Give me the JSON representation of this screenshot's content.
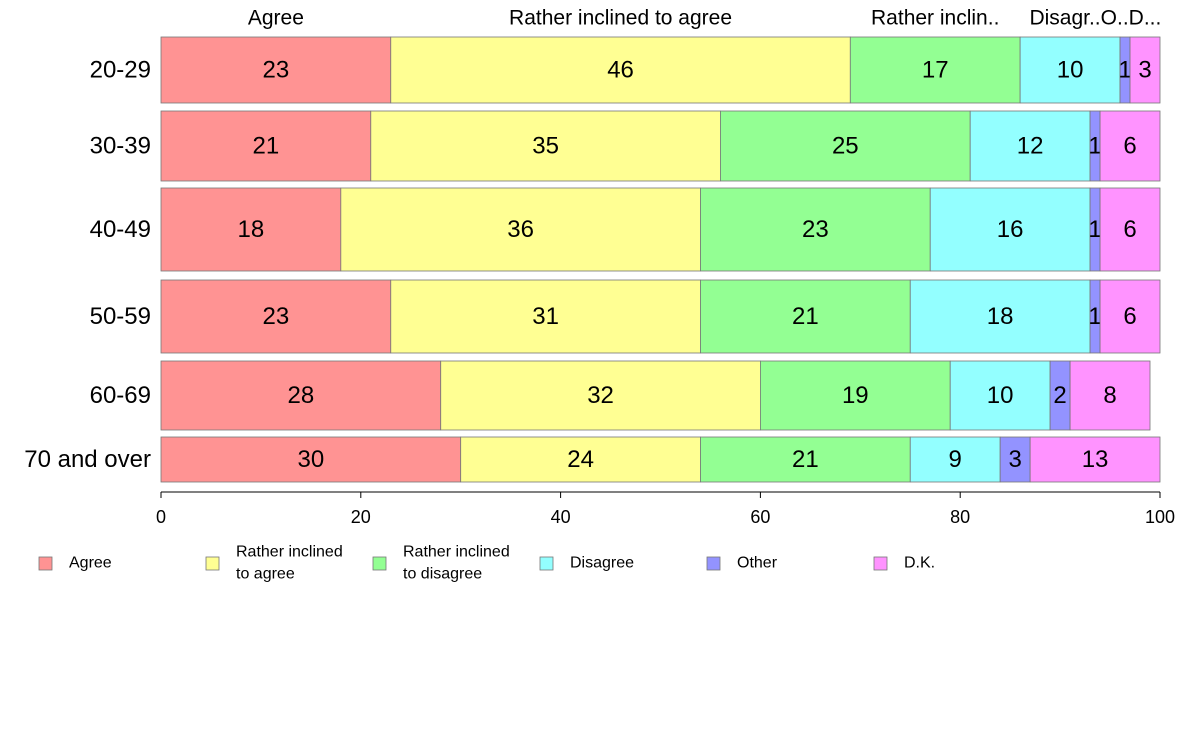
{
  "chart_data": {
    "type": "bar",
    "orientation": "horizontal",
    "stacked": true,
    "categories": [
      "20-29",
      "30-39",
      "40-49",
      "50-59",
      "60-69",
      "70 and over"
    ],
    "series": [
      {
        "name": "Agree",
        "legend_label": [
          "Agree"
        ],
        "top_label": "Agree",
        "color": "#ff9393",
        "values": [
          23,
          21,
          18,
          23,
          28,
          30
        ]
      },
      {
        "name": "Rather inclined to agree",
        "legend_label": [
          "Rather inclined",
          "to agree"
        ],
        "top_label": "Rather inclined to agree",
        "color": "#ffff93",
        "values": [
          46,
          35,
          36,
          31,
          32,
          24
        ]
      },
      {
        "name": "Rather inclined to disagree",
        "legend_label": [
          "Rather inclined",
          "to disagree"
        ],
        "top_label": "Rather inclin..",
        "color": "#93ff93",
        "values": [
          17,
          25,
          23,
          21,
          19,
          21
        ]
      },
      {
        "name": "Disagree",
        "legend_label": [
          "Disagree"
        ],
        "top_label": "Disagr..",
        "color": "#93ffff",
        "values": [
          10,
          12,
          16,
          18,
          10,
          9
        ]
      },
      {
        "name": "Other",
        "legend_label": [
          "Other"
        ],
        "top_label": "O..",
        "color": "#9393ff",
        "values": [
          1,
          1,
          1,
          1,
          2,
          3
        ]
      },
      {
        "name": "D.K.",
        "legend_label": [
          "D.K."
        ],
        "top_label": "D...",
        "color": "#ff93ff",
        "values": [
          3,
          6,
          6,
          6,
          8,
          13
        ]
      }
    ],
    "xlim": [
      0,
      100
    ],
    "xticks": [
      0,
      20,
      40,
      60,
      80,
      100
    ],
    "grid": false,
    "legend_position": "bottom",
    "title": "",
    "xlabel": "",
    "ylabel": ""
  }
}
